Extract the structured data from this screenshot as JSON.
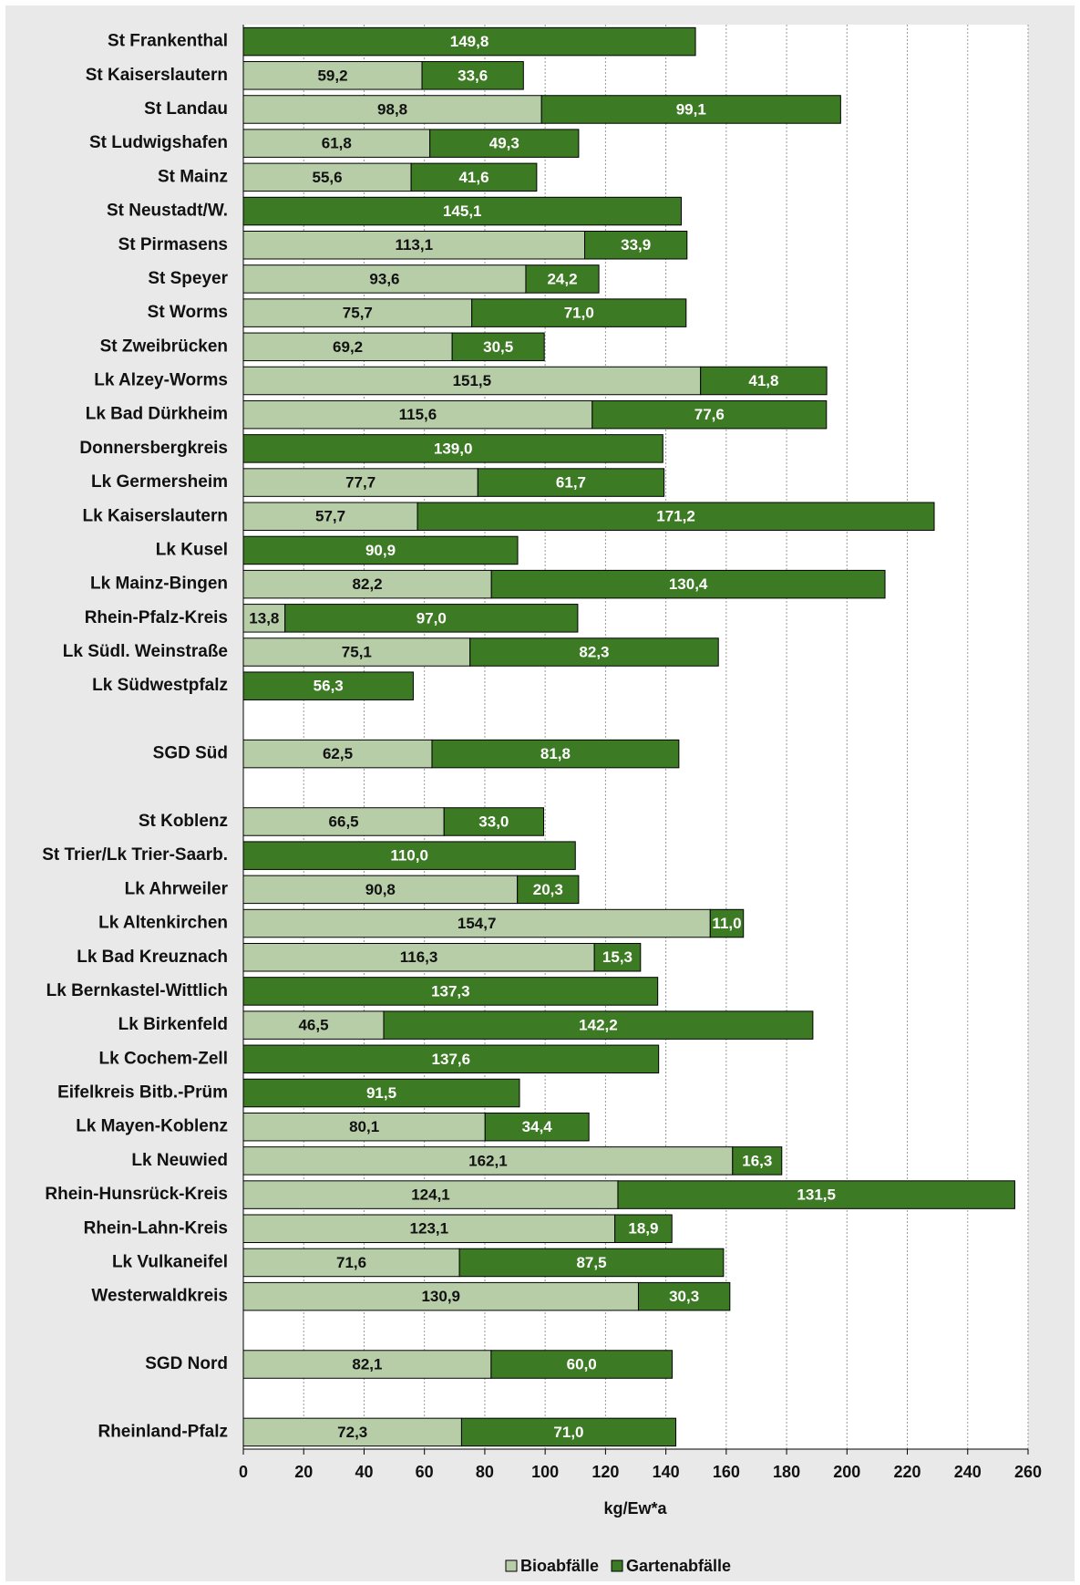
{
  "chart_data": {
    "type": "stacked_barh",
    "categories": [
      "St Frankenthal",
      "St Kaiserslautern",
      "St Landau",
      "St Ludwigshafen",
      "St Mainz",
      "St Neustadt/W.",
      "St Pirmasens",
      "St Speyer",
      "St Worms",
      "St Zweibrücken",
      "Lk Alzey-Worms",
      "Lk Bad Dürkheim",
      "Donnersbergkreis",
      "Lk Germersheim",
      "Lk Kaiserslautern",
      "Lk Kusel",
      "Lk Mainz-Bingen",
      "Rhein-Pfalz-Kreis",
      "Lk Südl. Weinstraße",
      "Lk Südwestpfalz",
      null,
      "SGD Süd",
      null,
      "St Koblenz",
      "St Trier/Lk Trier-Saarb.",
      "Lk Ahrweiler",
      "Lk Altenkirchen",
      "Lk Bad Kreuznach",
      "Lk Bernkastel-Wittlich",
      "Lk Birkenfeld",
      "Lk Cochem-Zell",
      "Eifelkreis Bitb.-Prüm",
      "Lk Mayen-Koblenz",
      "Lk Neuwied",
      "Rhein-Hunsrück-Kreis",
      "Rhein-Lahn-Kreis",
      "Lk Vulkaneifel",
      "Westerwaldkreis",
      null,
      "SGD Nord",
      null,
      "Rheinland-Pfalz"
    ],
    "series": [
      {
        "name": "Bioabfälle",
        "color": "#b7cda8",
        "values": [
          null,
          59.2,
          98.8,
          61.8,
          55.6,
          null,
          113.1,
          93.6,
          75.7,
          69.2,
          151.5,
          115.6,
          null,
          77.7,
          57.7,
          null,
          82.2,
          13.8,
          75.1,
          null,
          null,
          62.5,
          null,
          66.5,
          null,
          90.8,
          154.7,
          116.3,
          null,
          46.5,
          null,
          null,
          80.1,
          162.1,
          124.1,
          123.1,
          71.6,
          130.9,
          null,
          82.1,
          null,
          72.3
        ],
        "value_labels": [
          null,
          "59,2",
          "98,8",
          "61,8",
          "55,6",
          null,
          "113,1",
          "93,6",
          "75,7",
          "69,2",
          "151,5",
          "115,6",
          null,
          "77,7",
          "57,7",
          null,
          "82,2",
          "13,8",
          "75,1",
          null,
          null,
          "62,5",
          null,
          "66,5",
          null,
          "90,8",
          "154,7",
          "116,3",
          null,
          "46,5",
          null,
          null,
          "80,1",
          "162,1",
          "124,1",
          "123,1",
          "71,6",
          "130,9",
          null,
          "82,1",
          null,
          "72,3"
        ]
      },
      {
        "name": "Gartenabfälle",
        "color": "#3d7a24",
        "values": [
          149.8,
          33.6,
          99.1,
          49.3,
          41.6,
          145.1,
          33.9,
          24.2,
          71.0,
          30.5,
          41.8,
          77.6,
          139.0,
          61.7,
          171.2,
          90.9,
          130.4,
          97.0,
          82.3,
          56.3,
          null,
          81.8,
          null,
          33.0,
          110.0,
          20.3,
          11.0,
          15.3,
          137.3,
          142.2,
          137.6,
          91.5,
          34.4,
          16.3,
          131.5,
          18.9,
          87.5,
          30.3,
          null,
          60.0,
          null,
          71.0
        ],
        "value_labels": [
          "149,8",
          "33,6",
          "99,1",
          "49,3",
          "41,6",
          "145,1",
          "33,9",
          "24,2",
          "71,0",
          "30,5",
          "41,8",
          "77,6",
          "139,0",
          "61,7",
          "171,2",
          "90,9",
          "130,4",
          "97,0",
          "82,3",
          "56,3",
          null,
          "81,8",
          null,
          "33,0",
          "110,0",
          "20,3",
          "11,0",
          "15,3",
          "137,3",
          "142,2",
          "137,6",
          "91,5",
          "34,4",
          "16,3",
          "131,5",
          "18,9",
          "87,5",
          "30,3",
          null,
          "60,0",
          null,
          "71,0"
        ]
      }
    ],
    "xlabel": "kg/Ew*a",
    "xlim": [
      0,
      260
    ],
    "xticks": [
      0,
      20,
      40,
      60,
      80,
      100,
      120,
      140,
      160,
      180,
      200,
      220,
      240,
      260
    ],
    "grid": true,
    "legend": "bottom"
  }
}
